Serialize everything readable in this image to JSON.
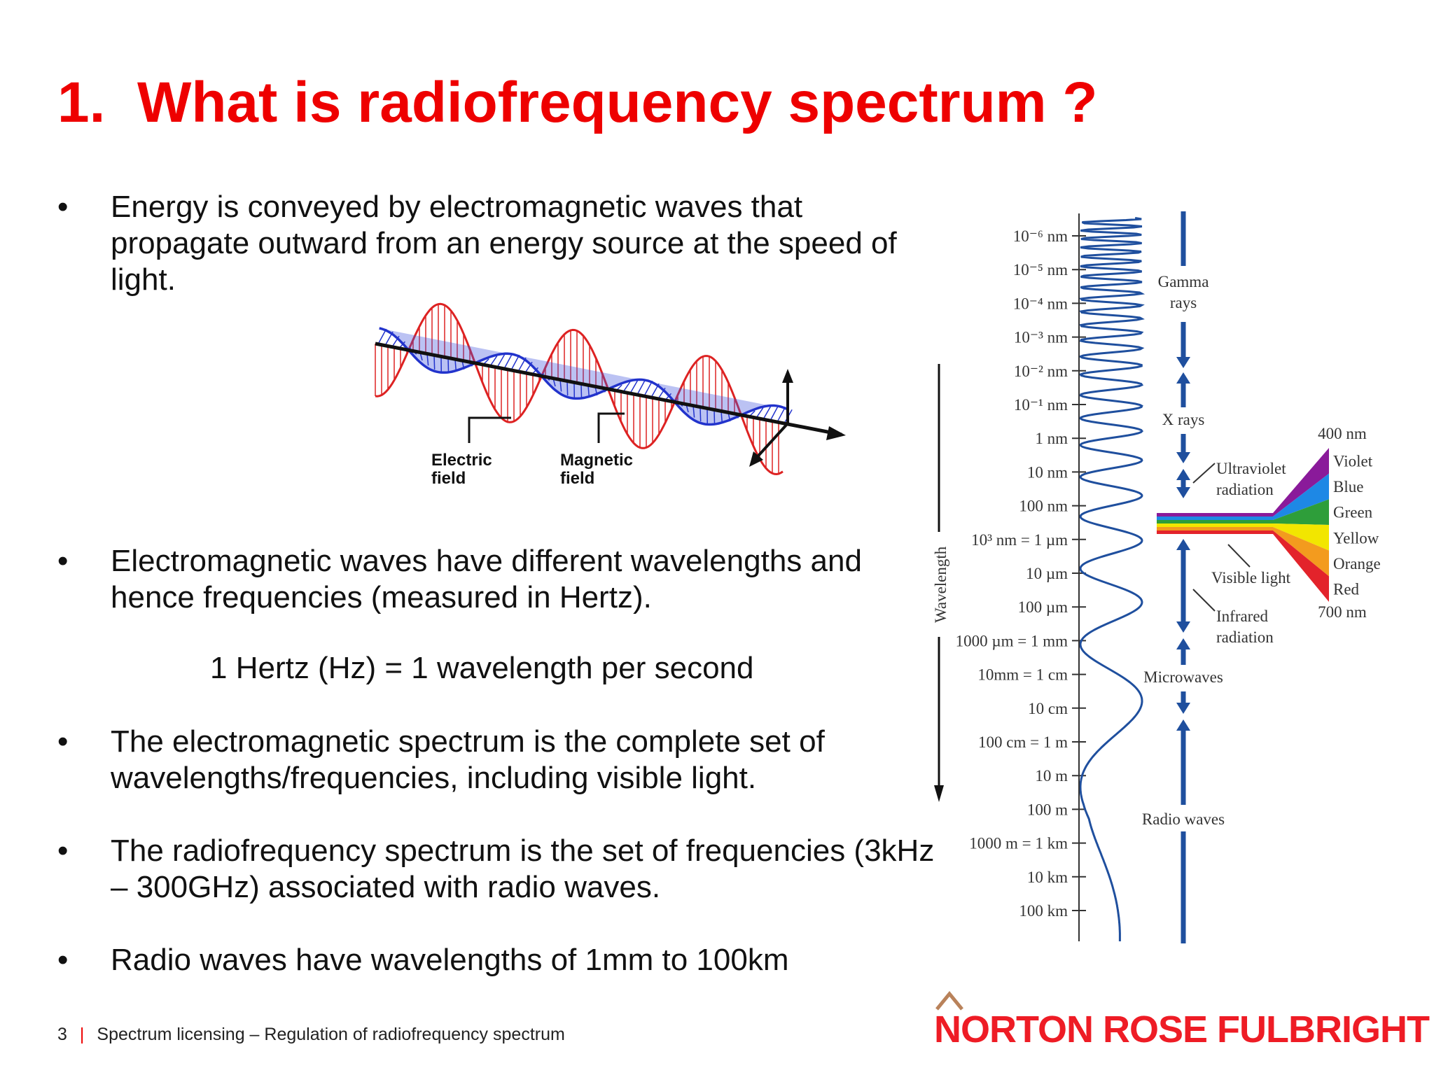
{
  "title": "1.  What is radiofrequency spectrum ?",
  "bullets": [
    "Energy is conveyed by electromagnetic waves that propagate outward from an energy source at the speed of light.",
    "Electromagnetic waves have different wavelengths and hence frequencies (measured in Hertz).",
    "The electromagnetic spectrum is the complete set of wavelengths/frequencies, including visible light.",
    "The radiofrequency spectrum is the set of frequencies (3kHz – 300GHz) associated with radio waves.",
    "Radio waves have wavelengths of 1mm to 100km"
  ],
  "bullet_symbol": "•",
  "formula": "1 Hertz (Hz) = 1 wavelength per second",
  "em_wave": {
    "electric_label_1": "Electric",
    "electric_label_2": "field",
    "magnetic_label_1": "Magnetic",
    "magnetic_label_2": "field",
    "colors": {
      "electric": "#dd2222",
      "magnetic": "#2233cc"
    }
  },
  "spectrum": {
    "axis_label": "Wavelength",
    "ticks": [
      "10⁻⁶ nm",
      "10⁻⁵ nm",
      "10⁻⁴ nm",
      "10⁻³ nm",
      "10⁻² nm",
      "10⁻¹ nm",
      "1 nm",
      "10 nm",
      "100 nm",
      "10³ nm = 1 µm",
      "10 µm",
      "100 µm",
      "1000 µm = 1 mm",
      "10mm = 1 cm",
      "10 cm",
      "100 cm = 1 m",
      "10 m",
      "100 m",
      "1000 m = 1 km",
      "10 km",
      "100 km"
    ],
    "bands": {
      "gamma_1": "Gamma",
      "gamma_2": "rays",
      "xrays": "X rays",
      "uv_1": "Ultraviolet",
      "uv_2": "radiation",
      "visible": "Visible light",
      "ir_1": "Infrared",
      "ir_2": "radiation",
      "microwaves": "Microwaves",
      "radio": "Radio waves"
    },
    "visible_top": "400 nm",
    "visible_bottom": "700 nm",
    "colors": [
      "Violet",
      "Blue",
      "Green",
      "Yellow",
      "Orange",
      "Red"
    ],
    "color_hex": [
      "#8a1a9a",
      "#1e88e5",
      "#2e9e3a",
      "#f2e600",
      "#f39b1e",
      "#e3232b"
    ],
    "line_color": "#1f4f9e"
  },
  "footer": {
    "page_number": "3",
    "separator": "|",
    "text": "Spectrum licensing – Regulation of radiofrequency spectrum"
  },
  "logo": {
    "text": "NORTON ROSE FULBRIGHT",
    "color": "#ee1c25"
  }
}
